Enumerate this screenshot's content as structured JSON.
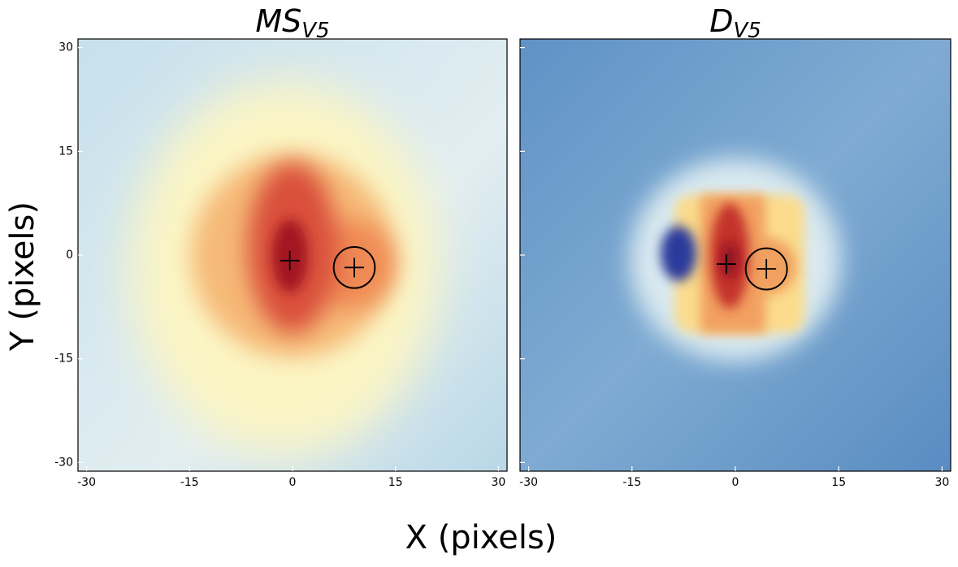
{
  "figure": {
    "xlabel": "X (pixels)",
    "ylabel": "Y (pixels)"
  },
  "chart_data": [
    {
      "type": "scatter",
      "title": {
        "text": "MS",
        "subscript": "V5"
      },
      "xlim": [
        -31.25,
        31.25
      ],
      "ylim": [
        -31.25,
        31.25
      ],
      "xticks": [
        -30,
        -15,
        0,
        15,
        30
      ],
      "yticks": [
        -30,
        -15,
        0,
        15,
        30
      ],
      "ytick_labels": true,
      "series": [
        {
          "x": [
            -0.4,
            9.0
          ],
          "y": [
            -0.8,
            -1.8
          ],
          "color": "#000000"
        }
      ],
      "circle": {
        "x": 9.0,
        "y": -1.8,
        "r": 3.0,
        "color": "#000000"
      }
    },
    {
      "type": "scatter",
      "title": {
        "text": "D",
        "subscript": "V5"
      },
      "xlim": [
        -31.25,
        31.25
      ],
      "ylim": [
        -31.25,
        31.25
      ],
      "xticks": [
        -30,
        -15,
        0,
        15,
        30
      ],
      "yticks": [
        -30,
        -15,
        0,
        15,
        30
      ],
      "ytick_labels": false,
      "series": [
        {
          "x": [
            -1.3,
            4.5
          ],
          "y": [
            -1.3,
            -2.0
          ],
          "color": "#000000"
        }
      ],
      "circle": {
        "x": 4.5,
        "y": -2.0,
        "r": 3.0,
        "color": "#000000"
      }
    }
  ]
}
